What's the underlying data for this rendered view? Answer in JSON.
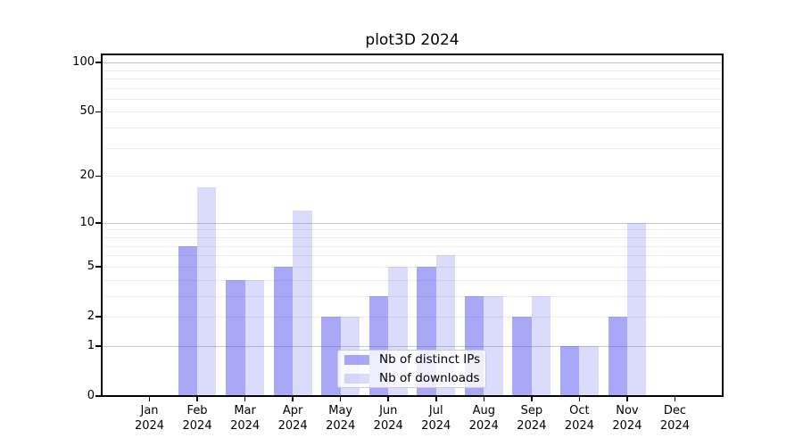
{
  "title": "plot3D 2024",
  "colors": {
    "bar_base": "#5555EE",
    "distinct_ips_fill": "rgba(85,85,238,0.51)",
    "downloads_fill": "rgba(85,85,238,0.21)",
    "major_gridline": "#c9c9c9",
    "minor_gridline": "#ebebeb",
    "axis": "#000000",
    "legend_border": "#cccccc"
  },
  "chart_data": {
    "type": "bar",
    "title": "plot3D 2024",
    "categories": [
      "Jan",
      "Feb",
      "Mar",
      "Apr",
      "May",
      "Jun",
      "Jul",
      "Aug",
      "Sep",
      "Oct",
      "Nov",
      "Dec"
    ],
    "year_label": "2024",
    "series": [
      {
        "name": "Nb of distinct IPs",
        "color": "rgba(85,85,238,0.51)",
        "values": [
          0,
          7,
          4,
          5,
          2,
          3,
          5,
          3,
          2,
          1,
          2,
          0
        ]
      },
      {
        "name": "Nb of downloads",
        "color": "rgba(85,85,238,0.21)",
        "values": [
          0,
          17,
          4,
          12,
          2,
          5,
          6,
          3,
          3,
          1,
          10,
          0
        ]
      }
    ],
    "xlabel": "",
    "ylabel": "",
    "yscale": "log10(1+x)",
    "ylim": [
      0,
      112
    ],
    "y_ticks": [
      0,
      1,
      2,
      5,
      10,
      20,
      50,
      100
    ],
    "major_gridlines": [
      1,
      10,
      100
    ],
    "minor_gridlines": [
      2,
      3,
      4,
      5,
      6,
      7,
      8,
      9,
      20,
      30,
      40,
      50,
      60,
      70,
      80,
      90
    ],
    "grid": true,
    "legend_position": "lower center"
  }
}
